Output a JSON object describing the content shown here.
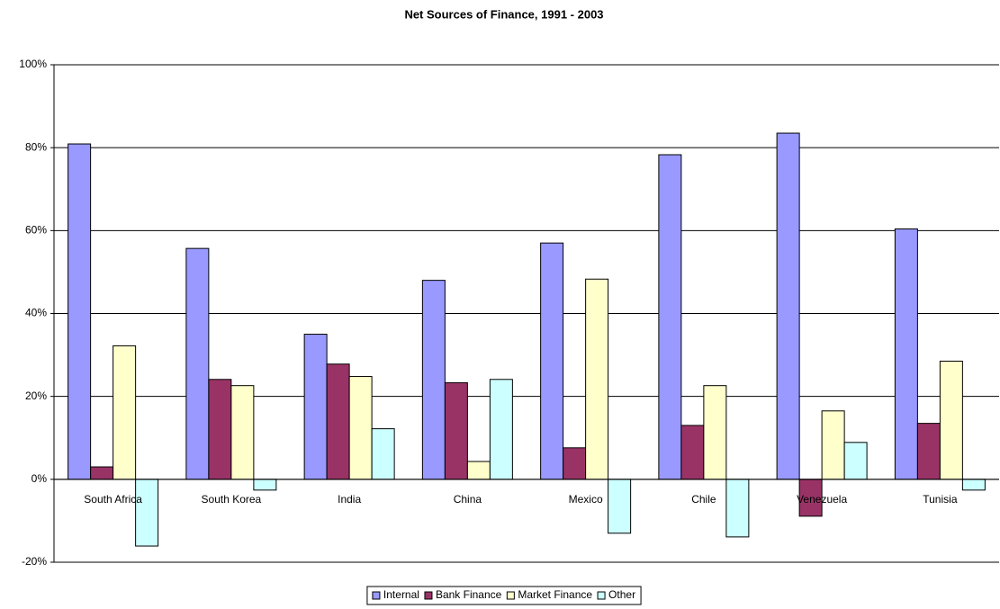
{
  "chart_data": {
    "type": "bar",
    "title": "Net Sources of Finance, 1991 - 2003",
    "categories": [
      "South Africa",
      "South Korea",
      "India",
      "China",
      "Mexico",
      "Chile",
      "Venezuela",
      "Tunisia"
    ],
    "series": [
      {
        "name": "Internal",
        "color": "#9999ff",
        "values": [
          80.9,
          55.7,
          35,
          48,
          57,
          78.3,
          83.5,
          60.4
        ]
      },
      {
        "name": "Bank Finance",
        "color": "#993366",
        "values": [
          3,
          24.1,
          27.8,
          23.3,
          7.6,
          13,
          -8.9,
          13.5
        ]
      },
      {
        "name": "Market Finance",
        "color": "#ffffcc",
        "values": [
          32.2,
          22.6,
          24.8,
          4.3,
          48.3,
          22.6,
          16.5,
          28.5
        ]
      },
      {
        "name": "Other",
        "color": "#ccffff",
        "values": [
          -16.1,
          -2.6,
          12.2,
          24.1,
          -13,
          -13.9,
          8.9,
          -2.6
        ]
      }
    ],
    "ylim": [
      -20,
      100
    ],
    "yticks": [
      {
        "value": -20,
        "label": "-20%"
      },
      {
        "value": 0,
        "label": "0%"
      },
      {
        "value": 20,
        "label": "20%"
      },
      {
        "value": 40,
        "label": "40%"
      },
      {
        "value": 60,
        "label": "60%"
      },
      {
        "value": 80,
        "label": "80%"
      },
      {
        "value": 100,
        "label": "100%"
      }
    ],
    "grid": true,
    "legend": "bottom"
  }
}
